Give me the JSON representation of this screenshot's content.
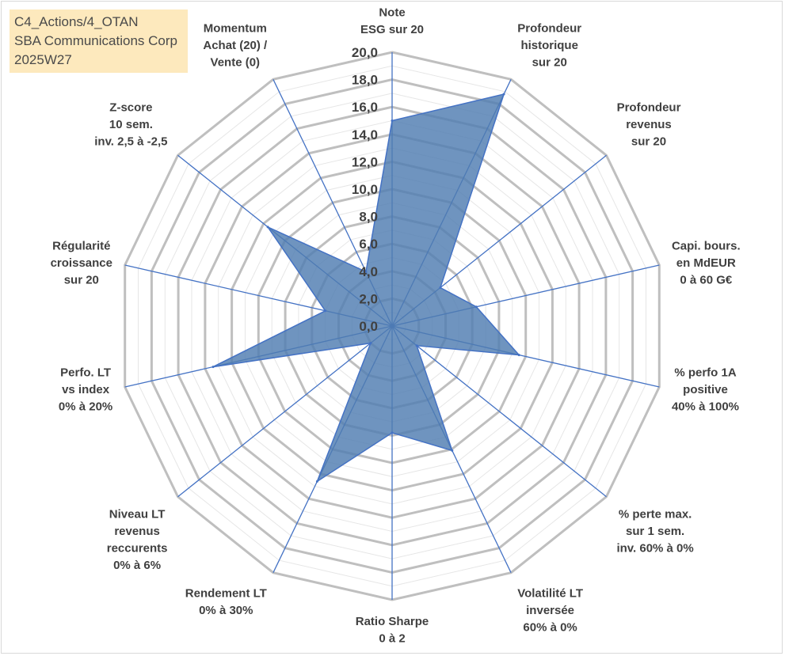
{
  "info": {
    "line1": "C4_Actions/4_OTAN",
    "line2": "SBA Communications Corp",
    "line3": "2025W27"
  },
  "colors": {
    "grid": "#bfbfbf",
    "spoke": "#4472c4",
    "fill": "#4f7cb1",
    "text": "#404040",
    "info_bg": "#fde9bd"
  },
  "chart_data": {
    "type": "radar",
    "rmin": 0,
    "rmax": 20,
    "tick_step": 1,
    "tick_labels": [
      "0,0",
      "2,0",
      "4,0",
      "6,0",
      "8,0",
      "10,0",
      "12,0",
      "14,0",
      "16,0",
      "18,0",
      "20,0"
    ],
    "axes": [
      {
        "label": [
          "Note",
          "ESG sur 20"
        ],
        "value": 15.0
      },
      {
        "label": [
          "Profondeur",
          "historique",
          "sur 20"
        ],
        "value": 18.8
      },
      {
        "label": [
          "Profondeur",
          "revenus",
          "sur 20"
        ],
        "value": 4.5
      },
      {
        "label": [
          "Capi. bours.",
          "en MdEUR",
          "0 à 60 G€"
        ],
        "value": 6.3
      },
      {
        "label": [
          "% perfo 1A",
          "positive",
          "40% à 100%"
        ],
        "value": 9.5
      },
      {
        "label": [
          "% perte max.",
          "sur 1 sem.",
          "inv. 60% à 0%"
        ],
        "value": 2.3
      },
      {
        "label": [
          "Volatilité LT",
          "inversée",
          "60% à 0%"
        ],
        "value": 10.1
      },
      {
        "label": [
          "Ratio Sharpe",
          "0 à 2"
        ],
        "value": 7.8
      },
      {
        "label": [
          "Rendement LT",
          "0% à 30%"
        ],
        "value": 12.6
      },
      {
        "label": [
          "Niveau LT",
          "revenus",
          "reccurents",
          "0% à 6%"
        ],
        "value": 2.0
      },
      {
        "label": [
          "Perfo. LT",
          "vs index",
          "0% à 20%"
        ],
        "value": 13.4
      },
      {
        "label": [
          "Régularité",
          "croissance",
          "sur 20"
        ],
        "value": 5.0
      },
      {
        "label": [
          "Z-score",
          "10 sem.",
          "inv. 2,5 à -2,5"
        ],
        "value": 11.6
      },
      {
        "label": [
          "Momentum",
          "Achat (20) /",
          "Vente (0)"
        ],
        "value": 4.4
      }
    ]
  }
}
